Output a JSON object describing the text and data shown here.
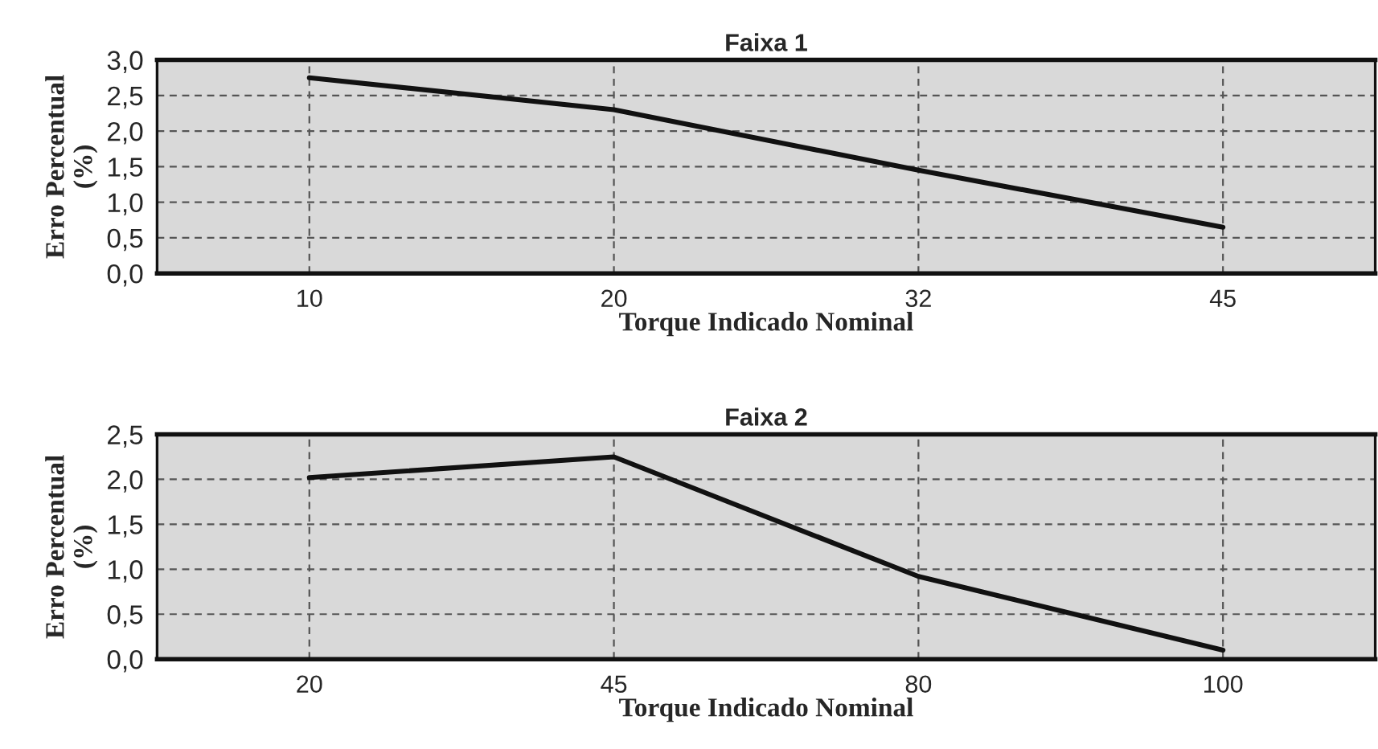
{
  "chart_data": [
    {
      "type": "line",
      "title": "Faixa 1",
      "xlabel": "Torque Indicado Nominal",
      "ylabel": "Erro Percentual\n(%)",
      "categories": [
        "10",
        "20",
        "32",
        "45"
      ],
      "series": [
        {
          "color": "#111111",
          "values": [
            2.75,
            2.3,
            1.45,
            0.65
          ]
        }
      ],
      "ylim": [
        0,
        3
      ],
      "yticks": [
        {
          "value": 0,
          "label": "0,0"
        },
        {
          "value": 0.5,
          "label": "0,5"
        },
        {
          "value": 1,
          "label": "1,0"
        },
        {
          "value": 1.5,
          "label": "1,5"
        },
        {
          "value": 2,
          "label": "2,0"
        },
        {
          "value": 2.5,
          "label": "2,5"
        },
        {
          "value": 3,
          "label": "3,0"
        }
      ],
      "grid": true,
      "line_style": "solid"
    },
    {
      "type": "line",
      "title": "Faixa 2",
      "xlabel": "Torque Indicado Nominal",
      "ylabel": "Erro Percentual\n(%)",
      "categories": [
        "20",
        "45",
        "80",
        "100"
      ],
      "series": [
        {
          "color": "#111111",
          "values": [
            2.02,
            2.25,
            0.92,
            0.1
          ]
        }
      ],
      "ylim": [
        0,
        2.5
      ],
      "yticks": [
        {
          "value": 0,
          "label": "0,0"
        },
        {
          "value": 0.5,
          "label": "0,5"
        },
        {
          "value": 1,
          "label": "1,0"
        },
        {
          "value": 1.5,
          "label": "1,5"
        },
        {
          "value": 2,
          "label": "2,0"
        },
        {
          "value": 2.5,
          "label": "2,5"
        }
      ],
      "grid": true,
      "line_style": "solid"
    }
  ]
}
